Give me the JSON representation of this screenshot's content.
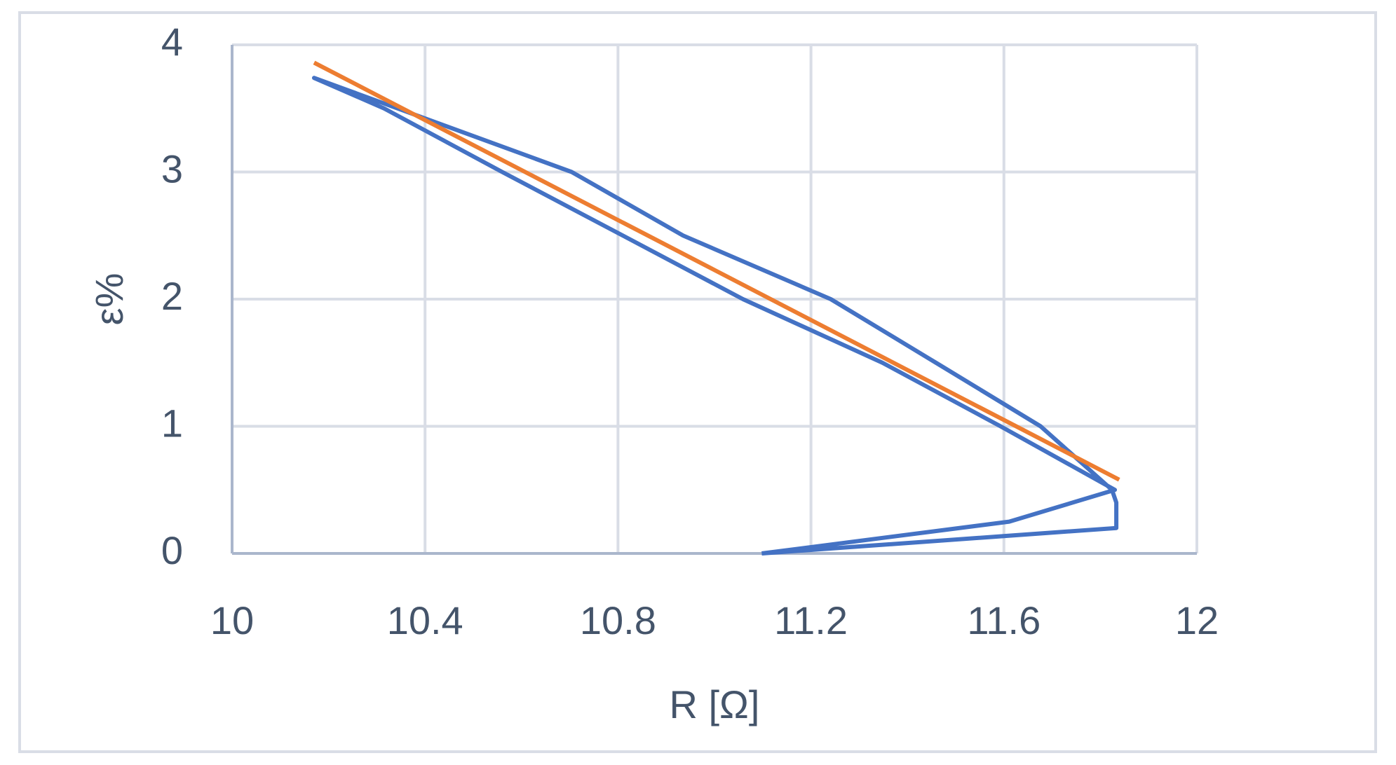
{
  "chart_data": {
    "type": "line",
    "x_label": "R [Ω]",
    "y_label": "ε%",
    "xlim": [
      10,
      12
    ],
    "xticks": [
      10,
      10.4,
      10.8,
      11.2,
      11.6,
      12
    ],
    "ylim": [
      0,
      4
    ],
    "yticks": [
      0,
      1,
      2,
      3,
      4
    ],
    "grid": true,
    "series": [
      {
        "color": "#4472c4",
        "x": [
          11.098,
          11.833,
          11.833,
          11.824,
          11.676,
          11.459,
          11.241,
          10.935,
          10.704,
          10.17,
          10.315,
          10.56,
          10.81,
          11.059,
          11.348,
          11.593,
          11.83,
          11.611,
          11.098
        ],
        "values": [
          0,
          0.2,
          0.4,
          0.5,
          1.0,
          1.5,
          2.0,
          2.5,
          3.0,
          3.74,
          3.5,
          3.0,
          2.5,
          2.0,
          1.5,
          1.0,
          0.5,
          0.25,
          0
        ]
      },
      {
        "color": "#ed7d31",
        "x": [
          10.17,
          11.839
        ],
        "values": [
          3.86,
          0.58
        ]
      }
    ]
  }
}
